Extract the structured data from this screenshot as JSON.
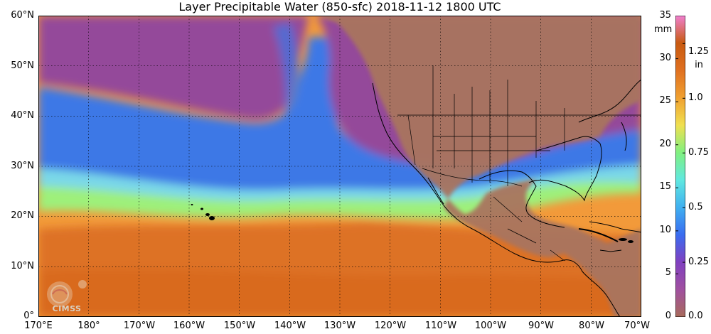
{
  "title": "Layer Precipitable Water (850-sfc)  2018-11-12 1800 UTC",
  "lat_labels": [
    "60°N",
    "50°N",
    "40°N",
    "30°N",
    "20°N",
    "10°N",
    "0°"
  ],
  "lon_labels": [
    "170°E",
    "180°",
    "170°W",
    "160°W",
    "150°W",
    "140°W",
    "130°W",
    "120°W",
    "110°W",
    "100°W",
    "90°W",
    "80°W",
    "70°W"
  ],
  "colorbar": {
    "mm_unit": "mm",
    "in_unit": "in",
    "mm_ticks": [
      "0",
      "5",
      "10",
      "15",
      "20",
      "25",
      "30",
      "35"
    ],
    "in_ticks": [
      "0.0",
      "0.25",
      "0.5",
      "0.75",
      "1.0",
      "1.25"
    ],
    "range_mm": [
      0,
      35
    ],
    "colors": [
      "#a86a5a",
      "#a050a0",
      "#8040c0",
      "#3a6cf0",
      "#40b0f0",
      "#60e8e0",
      "#80f080",
      "#f0e050",
      "#f0a030",
      "#e07020",
      "#c85a10",
      "#f080d0"
    ]
  },
  "logo": {
    "text": "CIMSS"
  },
  "map": {
    "extent": {
      "lon_min": 170,
      "lon_max": 290,
      "lat_min": 0,
      "lat_max": 60
    },
    "colors": {
      "land": "#a9745f",
      "dry_air": "#94489a",
      "moist_low": "#3c78e6",
      "moist_mid": "#7ad8e8",
      "moist_high": "#9ef07a",
      "tropical": "#f29a3a",
      "tropical_deep": "#d8681e",
      "border": "#000000",
      "grid": "#000000"
    }
  }
}
